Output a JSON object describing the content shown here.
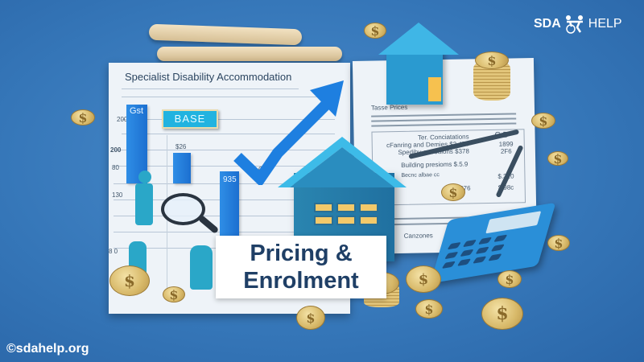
{
  "logo": {
    "left": "SDA",
    "right": "HELP"
  },
  "watermark": "©sdahelp.org",
  "title_card": {
    "line1": "Pricing &",
    "line2": "Enrolment"
  },
  "left_document": {
    "heading": "Specialist Disability Accommodation",
    "badge": "BASE",
    "bar_labels": [
      "Gst",
      "$26",
      "935"
    ],
    "axis_labels": [
      "200",
      "200",
      "80",
      "130",
      "8 0"
    ],
    "annotation": "G30"
  },
  "right_document": {
    "heading": "Tasse Prices",
    "rows": [
      {
        "label": "Ter. Conciatations",
        "value": "C D"
      },
      {
        "label": "cFanring and Demies $3.470",
        "value": "1899"
      },
      {
        "label": "Spedihy-gooodions $378",
        "value": "2F6"
      },
      {
        "label": "Building presioms $.5.9",
        "value": ""
      },
      {
        "label": "Becnc albae cc",
        "value": "$.310"
      },
      {
        "label": "9976",
        "value": "$.98c"
      }
    ],
    "footer": "Canzones"
  },
  "colors": {
    "background": "#3576b8",
    "title_text": "#1f3f66",
    "accent": "#1c8fd8"
  },
  "icons": [
    "house-icon",
    "calculator-icon",
    "coin-icon",
    "magnifier-icon",
    "arrow-up-icon",
    "pencil-icon",
    "scroll-icon",
    "person-figure-icon",
    "wheelchair-logo-icon"
  ]
}
